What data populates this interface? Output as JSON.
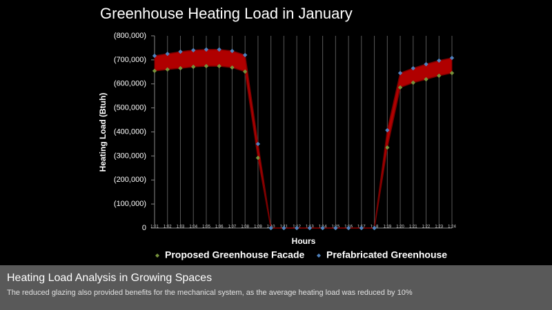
{
  "chart_data": {
    "type": "line",
    "title": "Greenhouse Heating Load in January",
    "x_label": "Hours",
    "y_label": "Heating Load (Btuh)",
    "categories": [
      "1:01",
      "1:02",
      "1:03",
      "1:04",
      "1:05",
      "1:06",
      "1:07",
      "1:08",
      "1:09",
      "1:10",
      "1:11",
      "1:12",
      "1:13",
      "1:14",
      "1:15",
      "1:16",
      "1:17",
      "1:18",
      "1:19",
      "1:20",
      "1:21",
      "1:22",
      "1:23",
      "1:24"
    ],
    "series": [
      {
        "name": "Proposed Greenhouse Facade",
        "color": "#77933c",
        "values": [
          654000,
          660000,
          665000,
          671000,
          674000,
          674000,
          668000,
          651000,
          292000,
          0,
          0,
          0,
          0,
          0,
          0,
          0,
          0,
          0,
          335000,
          585000,
          605000,
          619000,
          634000,
          645000
        ]
      },
      {
        "name": "Prefabricated Greenhouse",
        "color": "#4f81bd",
        "values": [
          717000,
          725000,
          734000,
          740000,
          743000,
          743000,
          737000,
          720000,
          350000,
          0,
          0,
          0,
          0,
          0,
          0,
          0,
          0,
          0,
          407000,
          645000,
          665000,
          682000,
          697000,
          708000
        ]
      }
    ],
    "fill_between_color": "#b00000",
    "ylim": [
      0,
      800000
    ],
    "yticks": [
      0,
      {
        "value": 100000,
        "label": "(100,000)"
      },
      {
        "value": 200000,
        "label": "(200,000)"
      },
      {
        "value": 300000,
        "label": "(300,000)"
      },
      {
        "value": 400000,
        "label": "(400,000)"
      },
      {
        "value": 500000,
        "label": "(500,000)"
      },
      {
        "value": 600000,
        "label": "(600,000)"
      },
      {
        "value": 700000,
        "label": "(700,000)"
      },
      {
        "value": 800000,
        "label": "(800,000)"
      }
    ],
    "grid": "x",
    "legend": "bottom"
  },
  "caption": {
    "title": "Heating Load Analysis in Growing Spaces",
    "text": "The reduced glazing also provided benefits for the mechanical system, as the average heating load was reduced by 10%"
  }
}
